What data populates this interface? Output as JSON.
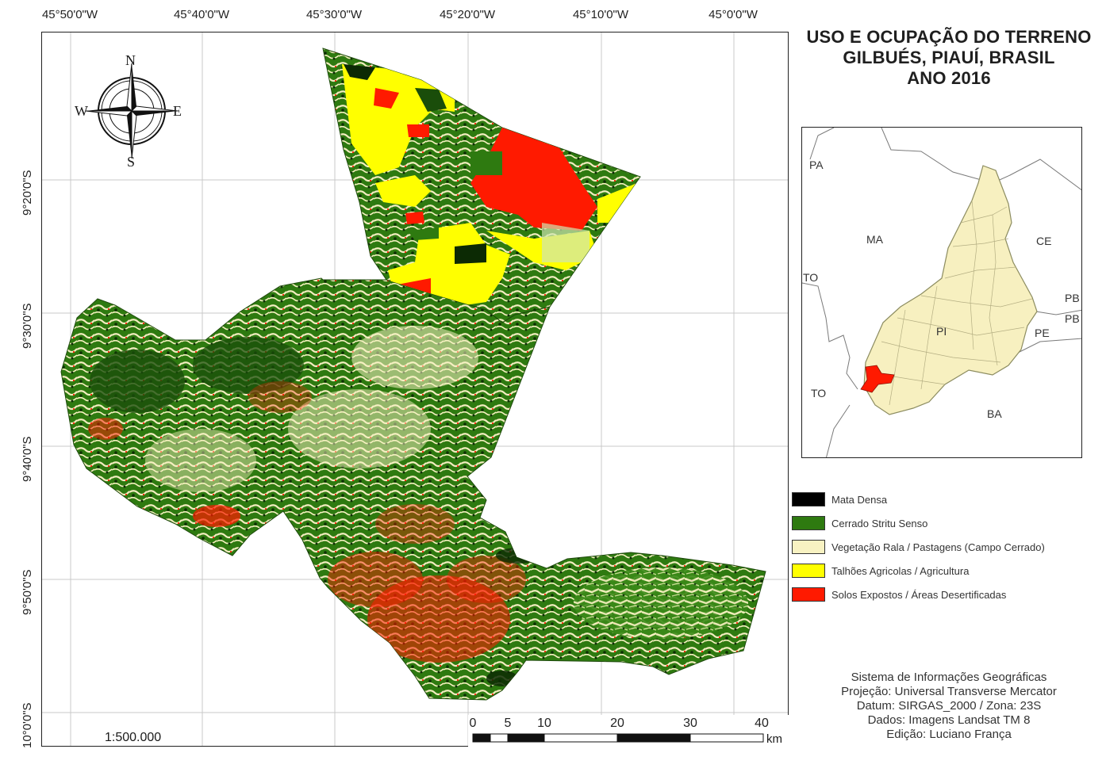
{
  "title": {
    "line1": "USO E OCUPAÇÃO DO TERRENO",
    "line2": "GILBUÉS, PIAUÍ, BRASIL",
    "line3": "ANO 2016"
  },
  "longitude_labels": [
    "45°50'0\"W",
    "45°40'0\"W",
    "45°30'0\"W",
    "45°20'0\"W",
    "45°10'0\"W",
    "45°0'0\"W"
  ],
  "latitude_labels": [
    "9°20'0\"S",
    "9°30'0\"S",
    "9°40'0\"S",
    "9°50'0\"S",
    "10°0'0\"S"
  ],
  "compass": {
    "north": "N",
    "south": "S",
    "east": "E",
    "west": "W",
    "icon": "compass-rose-icon"
  },
  "scale_ratio": "1:500.000",
  "scale_bar": {
    "ticks": [
      "0",
      "5",
      "10",
      "20",
      "30",
      "40"
    ],
    "unit": "km"
  },
  "inset_labels": {
    "pa": "PA",
    "ma": "MA",
    "ce": "CE",
    "to_top": "TO",
    "to_bottom": "TO",
    "pb1": "PB",
    "pb2": "PB",
    "pi": "PI",
    "pe": "PE",
    "ba": "BA"
  },
  "legend": [
    {
      "label": "Mata Densa",
      "color": "#000000"
    },
    {
      "label": "Cerrado Stritu Senso",
      "color": "#2e7a10"
    },
    {
      "label": "Vegetação Rala / Pastagens (Campo Cerrado)",
      "color": "#f8f2c2"
    },
    {
      "label": "Talhões Agricolas / Agricultura",
      "color": "#ffff00"
    },
    {
      "label": "Solos Expostos / Áreas Desertificadas",
      "color": "#ff1a00"
    }
  ],
  "credits": {
    "line1": "Sistema de Informações Geográficas",
    "line2": "Projeção: Universal Transverse Mercator",
    "line3": "Datum: SIRGAS_2000 / Zona: 23S",
    "line4": "Dados: Imagens Landsat TM 8",
    "line5": "Edição: Luciano França"
  },
  "colors": {
    "dense_forest": "#000000",
    "cerrado": "#2e7a10",
    "sparse_vegetation": "#f8f2c2",
    "agriculture": "#ffff00",
    "exposed_soil": "#ff1a00",
    "inset_state_fill": "#f7f0c0",
    "inset_highlight": "#ff1a00"
  }
}
